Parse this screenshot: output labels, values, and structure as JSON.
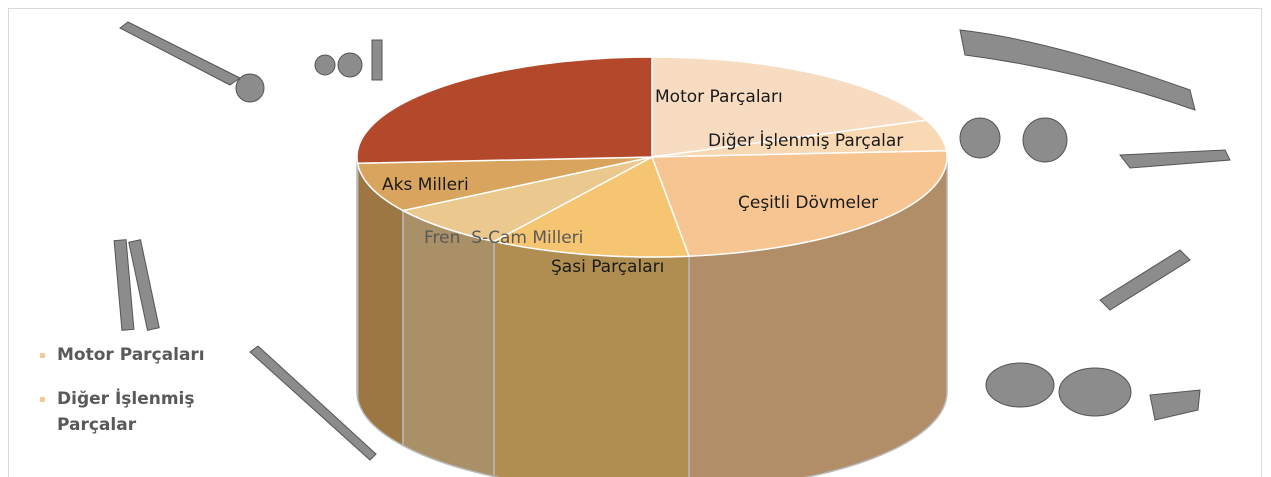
{
  "chart_data": {
    "type": "pie3d",
    "categories": [
      "Motor Parçaları",
      "Diğer İşlenmiş Parçalar",
      "Çeşitli Dövmeler",
      "Şasi Parçaları",
      "Fren  S-Cam Milleri",
      "Aks Milleri",
      null
    ],
    "values": [
      19,
      5,
      24,
      11,
      7,
      8,
      26
    ],
    "colors": [
      "#f7dcc2",
      "#f9d8b4",
      "#f6c591",
      "#f5c572",
      "#ebc88e",
      "#d9a55e",
      "#b3482a"
    ],
    "legend_color": "#f4c89a"
  }
}
